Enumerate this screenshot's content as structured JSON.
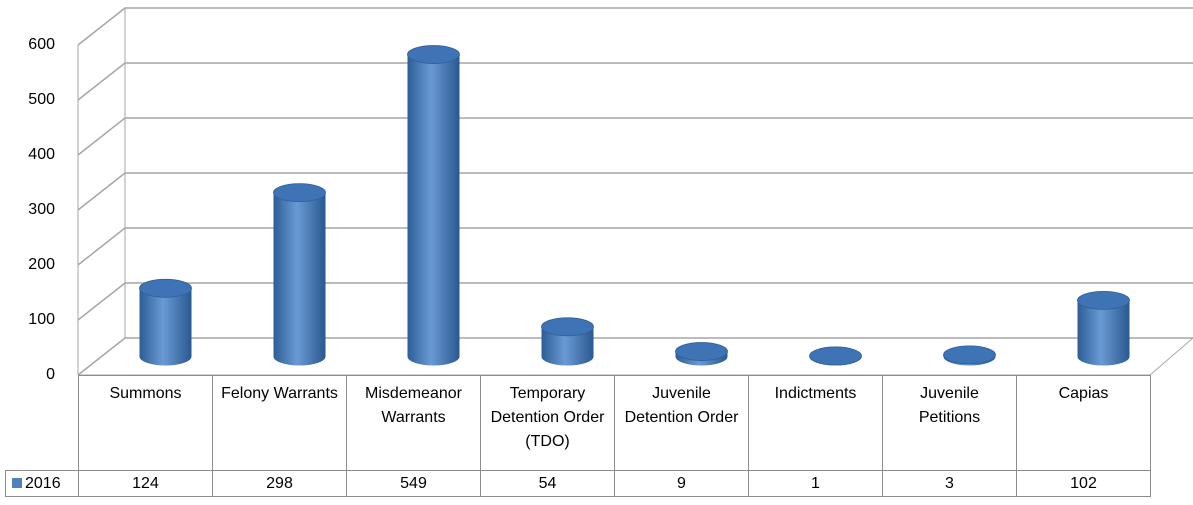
{
  "chart_data": {
    "type": "bar",
    "categories": [
      "Summons",
      "Felony Warrants",
      "Misdemeanor Warrants",
      "Temporary Detention Order (TDO)",
      "Juvenile Detention Order",
      "Indictments",
      "Juvenile Petitions",
      "Capias"
    ],
    "series": [
      {
        "name": "2016",
        "color": "#4f81bd",
        "values": [
          124,
          298,
          549,
          54,
          9,
          1,
          3,
          102
        ]
      }
    ],
    "ylim": [
      0,
      600
    ],
    "yticks": [
      0,
      100,
      200,
      300,
      400,
      500,
      600
    ],
    "grid": true
  }
}
